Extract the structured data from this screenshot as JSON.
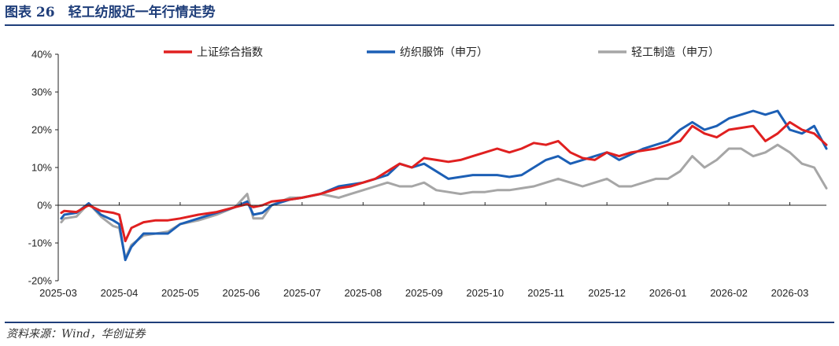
{
  "figure": {
    "title": "图表 26　轻工纺服近一年行情走势",
    "source": "资料来源：Wind，华创证券"
  },
  "colors": {
    "accent": "#1f3e7a",
    "sse": "#e02020",
    "textile": "#1c5fb5",
    "lightind": "#a6a6a6"
  },
  "chart_data": {
    "type": "line",
    "title": "",
    "xlabel": "",
    "ylabel": "",
    "ylim": [
      -20,
      40
    ],
    "y_ticks": [
      -20,
      -10,
      0,
      10,
      20,
      30,
      40
    ],
    "y_tick_labels": [
      "-20%",
      "-10%",
      "0%",
      "10%",
      "20%",
      "30%",
      "40%"
    ],
    "x_range": [
      0,
      12.6
    ],
    "x_ticks": [
      0,
      1,
      2,
      3,
      4,
      5,
      6,
      7,
      8,
      9,
      10,
      11,
      12
    ],
    "x_tick_labels": [
      "2025-03",
      "2025-04",
      "2025-05",
      "2025-06",
      "2025-07",
      "2025-08",
      "2025-09",
      "2025-10",
      "2025-11",
      "2025-12",
      "2026-01",
      "2026-02",
      "2026-03"
    ],
    "grid": false,
    "legend_position": "top",
    "series": [
      {
        "name": "上证综合指数",
        "color": "#e02020",
        "x": [
          0.05,
          0.1,
          0.3,
          0.5,
          0.7,
          0.9,
          1.0,
          1.1,
          1.2,
          1.4,
          1.6,
          1.8,
          2.0,
          2.3,
          2.6,
          2.9,
          3.1,
          3.2,
          3.35,
          3.5,
          3.8,
          4.0,
          4.3,
          4.6,
          4.8,
          5.0,
          5.2,
          5.4,
          5.6,
          5.8,
          6.0,
          6.2,
          6.4,
          6.6,
          6.8,
          7.0,
          7.2,
          7.4,
          7.6,
          7.8,
          8.0,
          8.2,
          8.4,
          8.6,
          8.8,
          9.0,
          9.2,
          9.4,
          9.6,
          9.8,
          10.0,
          10.2,
          10.4,
          10.6,
          10.8,
          11.0,
          11.2,
          11.4,
          11.6,
          11.8,
          12.0,
          12.2,
          12.4,
          12.6
        ],
        "y": [
          -2,
          -1.5,
          -1.8,
          0,
          -1.5,
          -2,
          -2.5,
          -9.5,
          -6,
          -4.5,
          -4,
          -4,
          -3.5,
          -2.5,
          -1.8,
          -0.5,
          0.3,
          -0.5,
          0,
          1,
          1.5,
          2,
          3,
          4.5,
          5,
          6,
          7,
          9,
          11,
          10,
          12.5,
          12,
          11.5,
          12,
          13,
          14,
          15,
          14,
          15,
          16.5,
          16,
          17,
          14,
          12.5,
          12,
          14,
          13,
          14,
          14.5,
          15,
          16,
          17,
          21,
          19,
          18,
          20,
          20.5,
          21,
          17,
          19,
          22,
          20,
          19,
          16
        ]
      },
      {
        "name": "纺织服饰（申万）",
        "color": "#1c5fb5",
        "x": [
          0.05,
          0.1,
          0.3,
          0.5,
          0.7,
          0.9,
          1.0,
          1.1,
          1.2,
          1.4,
          1.6,
          1.8,
          2.0,
          2.3,
          2.6,
          2.9,
          3.1,
          3.2,
          3.35,
          3.5,
          3.8,
          4.0,
          4.3,
          4.6,
          4.8,
          5.0,
          5.2,
          5.4,
          5.6,
          5.8,
          6.0,
          6.2,
          6.4,
          6.6,
          6.8,
          7.0,
          7.2,
          7.4,
          7.6,
          7.8,
          8.0,
          8.2,
          8.4,
          8.6,
          8.8,
          9.0,
          9.2,
          9.4,
          9.6,
          9.8,
          10.0,
          10.2,
          10.4,
          10.6,
          10.8,
          11.0,
          11.2,
          11.4,
          11.6,
          11.8,
          12.0,
          12.2,
          12.4,
          12.6
        ],
        "y": [
          -3.5,
          -2.5,
          -2,
          0.5,
          -2.5,
          -4,
          -5,
          -14.5,
          -11,
          -7.5,
          -7.5,
          -7.5,
          -5,
          -3.5,
          -2,
          -0.5,
          1,
          -2.5,
          -2,
          0,
          1.5,
          2,
          3,
          5,
          5.5,
          6,
          7,
          8,
          11,
          10,
          11,
          9,
          7,
          7.5,
          8,
          8,
          8,
          7.5,
          8,
          10,
          12,
          13,
          11,
          12,
          13,
          14,
          12,
          13.5,
          15,
          16,
          17,
          20,
          22,
          20,
          21,
          23,
          24,
          25,
          24,
          25,
          20,
          19,
          21,
          15
        ]
      },
      {
        "name": "轻工制造（申万）",
        "color": "#a6a6a6",
        "x": [
          0.05,
          0.1,
          0.3,
          0.5,
          0.7,
          0.9,
          1.0,
          1.1,
          1.2,
          1.4,
          1.6,
          1.8,
          2.0,
          2.3,
          2.6,
          2.9,
          3.1,
          3.2,
          3.35,
          3.5,
          3.8,
          4.0,
          4.3,
          4.6,
          4.8,
          5.0,
          5.2,
          5.4,
          5.6,
          5.8,
          6.0,
          6.2,
          6.4,
          6.6,
          6.8,
          7.0,
          7.2,
          7.4,
          7.6,
          7.8,
          8.0,
          8.2,
          8.4,
          8.6,
          8.8,
          9.0,
          9.2,
          9.4,
          9.6,
          9.8,
          10.0,
          10.2,
          10.4,
          10.6,
          10.8,
          11.0,
          11.2,
          11.4,
          11.6,
          11.8,
          12.0,
          12.2,
          12.4,
          12.6
        ],
        "y": [
          -4.5,
          -3.5,
          -3,
          0.5,
          -3,
          -5.5,
          -6,
          -14,
          -10.5,
          -8,
          -7.5,
          -7,
          -5,
          -4,
          -2.5,
          -0.5,
          3,
          -3.5,
          -3.5,
          0,
          2,
          2,
          3,
          2,
          3,
          4,
          5,
          6,
          5,
          5,
          6,
          4,
          3.5,
          3,
          3.5,
          3.5,
          4,
          4,
          4.5,
          5,
          6,
          7,
          6,
          5,
          6,
          7,
          5,
          5,
          6,
          7,
          7,
          9,
          13,
          10,
          12,
          15,
          15,
          13,
          14,
          16,
          14,
          11,
          10,
          4.5
        ]
      }
    ]
  }
}
